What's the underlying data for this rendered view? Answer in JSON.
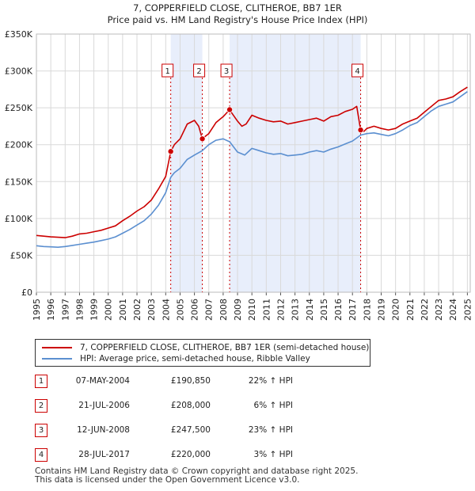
{
  "chart_data": {
    "type": "line",
    "title": "7, COPPERFIELD CLOSE, CLITHEROE, BB7 1ER",
    "subtitle": "Price paid vs. HM Land Registry's House Price Index (HPI)",
    "xlim": [
      1995,
      2025.2
    ],
    "ylim": [
      0,
      350000
    ],
    "y_ticks": [
      {
        "value": 0,
        "label": "£0"
      },
      {
        "value": 50000,
        "label": "£50K"
      },
      {
        "value": 100000,
        "label": "£100K"
      },
      {
        "value": 150000,
        "label": "£150K"
      },
      {
        "value": 200000,
        "label": "£200K"
      },
      {
        "value": 250000,
        "label": "£250K"
      },
      {
        "value": 300000,
        "label": "£300K"
      },
      {
        "value": 350000,
        "label": "£350K"
      }
    ],
    "x_ticks": [
      "1995",
      "1996",
      "1997",
      "1998",
      "1999",
      "2000",
      "2001",
      "2002",
      "2003",
      "2004",
      "2005",
      "2006",
      "2007",
      "2008",
      "2009",
      "2010",
      "2011",
      "2012",
      "2013",
      "2014",
      "2015",
      "2016",
      "2017",
      "2018",
      "2019",
      "2020",
      "2021",
      "2022",
      "2023",
      "2024",
      "2025"
    ],
    "shaded_ranges": [
      [
        2004.35,
        2006.55
      ],
      [
        2008.45,
        2017.57
      ]
    ],
    "series": [
      {
        "name": "7, COPPERFIELD CLOSE, CLITHEROE, BB7 1ER (semi-detached house)",
        "color": "#cc0000",
        "points": [
          [
            1995.0,
            77000
          ],
          [
            1995.5,
            76000
          ],
          [
            1996.0,
            75000
          ],
          [
            1996.5,
            74500
          ],
          [
            1997.0,
            74000
          ],
          [
            1997.5,
            76000
          ],
          [
            1998.0,
            79000
          ],
          [
            1998.5,
            80000
          ],
          [
            1999.0,
            82000
          ],
          [
            1999.5,
            84000
          ],
          [
            2000.0,
            87000
          ],
          [
            2000.5,
            90000
          ],
          [
            2001.0,
            97000
          ],
          [
            2001.5,
            103000
          ],
          [
            2002.0,
            110000
          ],
          [
            2002.5,
            116000
          ],
          [
            2003.0,
            125000
          ],
          [
            2003.5,
            140000
          ],
          [
            2004.0,
            157000
          ],
          [
            2004.35,
            190850
          ],
          [
            2004.6,
            200000
          ],
          [
            2005.0,
            208000
          ],
          [
            2005.5,
            228000
          ],
          [
            2006.0,
            233000
          ],
          [
            2006.3,
            225000
          ],
          [
            2006.55,
            208000
          ],
          [
            2006.8,
            212000
          ],
          [
            2007.0,
            215000
          ],
          [
            2007.5,
            230000
          ],
          [
            2008.0,
            238000
          ],
          [
            2008.45,
            247500
          ],
          [
            2008.6,
            243000
          ],
          [
            2009.0,
            232000
          ],
          [
            2009.3,
            225000
          ],
          [
            2009.6,
            228000
          ],
          [
            2010.0,
            240000
          ],
          [
            2010.5,
            236000
          ],
          [
            2011.0,
            233000
          ],
          [
            2011.5,
            231000
          ],
          [
            2012.0,
            232000
          ],
          [
            2012.5,
            228000
          ],
          [
            2013.0,
            230000
          ],
          [
            2013.5,
            232000
          ],
          [
            2014.0,
            234000
          ],
          [
            2014.5,
            236000
          ],
          [
            2015.0,
            232000
          ],
          [
            2015.5,
            238000
          ],
          [
            2016.0,
            240000
          ],
          [
            2016.5,
            245000
          ],
          [
            2017.0,
            248000
          ],
          [
            2017.3,
            252000
          ],
          [
            2017.57,
            220000
          ],
          [
            2017.8,
            218000
          ],
          [
            2018.0,
            222000
          ],
          [
            2018.5,
            225000
          ],
          [
            2019.0,
            222000
          ],
          [
            2019.5,
            220000
          ],
          [
            2020.0,
            222000
          ],
          [
            2020.5,
            228000
          ],
          [
            2021.0,
            232000
          ],
          [
            2021.5,
            236000
          ],
          [
            2022.0,
            244000
          ],
          [
            2022.5,
            252000
          ],
          [
            2023.0,
            260000
          ],
          [
            2023.5,
            262000
          ],
          [
            2024.0,
            265000
          ],
          [
            2024.5,
            272000
          ],
          [
            2025.0,
            278000
          ]
        ]
      },
      {
        "name": "HPI: Average price, semi-detached house, Ribble Valley",
        "color": "#5b8fd0",
        "points": [
          [
            1995.0,
            63000
          ],
          [
            1995.5,
            62000
          ],
          [
            1996.0,
            61500
          ],
          [
            1996.5,
            61000
          ],
          [
            1997.0,
            62000
          ],
          [
            1997.5,
            63500
          ],
          [
            1998.0,
            65000
          ],
          [
            1998.5,
            66500
          ],
          [
            1999.0,
            68000
          ],
          [
            1999.5,
            70000
          ],
          [
            2000.0,
            72000
          ],
          [
            2000.5,
            75000
          ],
          [
            2001.0,
            80000
          ],
          [
            2001.5,
            85000
          ],
          [
            2002.0,
            91000
          ],
          [
            2002.5,
            97000
          ],
          [
            2003.0,
            106000
          ],
          [
            2003.5,
            118000
          ],
          [
            2004.0,
            135000
          ],
          [
            2004.35,
            156000
          ],
          [
            2004.6,
            162000
          ],
          [
            2005.0,
            168000
          ],
          [
            2005.5,
            180000
          ],
          [
            2006.0,
            186000
          ],
          [
            2006.55,
            192000
          ],
          [
            2007.0,
            200000
          ],
          [
            2007.5,
            206000
          ],
          [
            2008.0,
            208000
          ],
          [
            2008.45,
            204000
          ],
          [
            2009.0,
            190000
          ],
          [
            2009.5,
            186000
          ],
          [
            2010.0,
            195000
          ],
          [
            2010.5,
            192000
          ],
          [
            2011.0,
            189000
          ],
          [
            2011.5,
            187000
          ],
          [
            2012.0,
            188000
          ],
          [
            2012.5,
            185000
          ],
          [
            2013.0,
            186000
          ],
          [
            2013.5,
            187000
          ],
          [
            2014.0,
            190000
          ],
          [
            2014.5,
            192000
          ],
          [
            2015.0,
            190000
          ],
          [
            2015.5,
            194000
          ],
          [
            2016.0,
            197000
          ],
          [
            2016.5,
            201000
          ],
          [
            2017.0,
            205000
          ],
          [
            2017.57,
            213000
          ],
          [
            2018.0,
            215000
          ],
          [
            2018.5,
            216000
          ],
          [
            2019.0,
            214000
          ],
          [
            2019.5,
            212000
          ],
          [
            2020.0,
            215000
          ],
          [
            2020.5,
            220000
          ],
          [
            2021.0,
            226000
          ],
          [
            2021.5,
            230000
          ],
          [
            2022.0,
            238000
          ],
          [
            2022.5,
            246000
          ],
          [
            2023.0,
            252000
          ],
          [
            2023.5,
            255000
          ],
          [
            2024.0,
            258000
          ],
          [
            2024.5,
            265000
          ],
          [
            2025.0,
            272000
          ]
        ]
      }
    ],
    "sales": [
      {
        "label": "1",
        "x": 2004.35,
        "price": 190850
      },
      {
        "label": "2",
        "x": 2006.55,
        "price": 208000
      },
      {
        "label": "3",
        "x": 2008.45,
        "price": 247500
      },
      {
        "label": "4",
        "x": 2017.57,
        "price": 220000
      }
    ]
  },
  "legend": {
    "property_label": "7, COPPERFIELD CLOSE, CLITHEROE, BB7 1ER (semi-detached house)",
    "hpi_label": "HPI: Average price, semi-detached house, Ribble Valley"
  },
  "sales_table": [
    {
      "num": "1",
      "date": "07-MAY-2004",
      "price": "£190,850",
      "hpi": "22% ↑ HPI"
    },
    {
      "num": "2",
      "date": "21-JUL-2006",
      "price": "£208,000",
      "hpi": "6% ↑ HPI"
    },
    {
      "num": "3",
      "date": "12-JUN-2008",
      "price": "£247,500",
      "hpi": "23% ↑ HPI"
    },
    {
      "num": "4",
      "date": "28-JUL-2017",
      "price": "£220,000",
      "hpi": "3% ↑ HPI"
    }
  ],
  "footer": {
    "line1": "Contains HM Land Registry data © Crown copyright and database right 2025.",
    "line2": "This data is licensed under the Open Government Licence v3.0."
  }
}
